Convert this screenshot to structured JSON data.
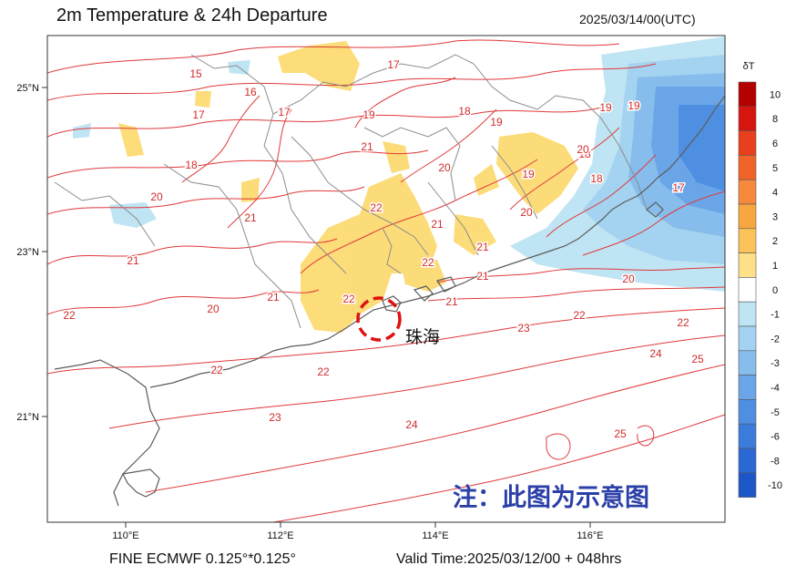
{
  "header": {
    "title": "2m Temperature & 24h Departure",
    "timestamp": "2025/03/14/00(UTC)"
  },
  "footer": {
    "model": "FINE ECMWF 0.125°*0.125°",
    "valid_time": "Valid Time:2025/03/12/00 + 048hrs"
  },
  "axes": {
    "x_ticks": [
      "110°E",
      "112°E",
      "114°E",
      "116°E"
    ],
    "y_ticks": [
      "25°N",
      "23°N",
      "21°N"
    ]
  },
  "annotation": {
    "city_label": "珠海",
    "note": "注：此图为示意图"
  },
  "colorbar": {
    "title": "δT",
    "levels": [
      "10",
      "8",
      "6",
      "5",
      "4",
      "3",
      "2",
      "1",
      "0",
      "-1",
      "-2",
      "-3",
      "-4",
      "-5",
      "-6",
      "-8",
      "-10"
    ],
    "colors": [
      "#b30000",
      "#d7150f",
      "#e8401c",
      "#f0642a",
      "#f6893c",
      "#f8a640",
      "#fbc45a",
      "#fde088",
      "#ffffff",
      "#bfe4f3",
      "#a3d3f0",
      "#86bdec",
      "#6aa6e7",
      "#4f8fe1",
      "#3a7bdc",
      "#2a69d3",
      "#1d56c6"
    ]
  },
  "contour_labels": [
    {
      "text": "15"
    },
    {
      "text": "17"
    },
    {
      "text": "16"
    },
    {
      "text": "17"
    },
    {
      "text": "18"
    },
    {
      "text": "17"
    },
    {
      "text": "19"
    },
    {
      "text": "18"
    },
    {
      "text": "19"
    },
    {
      "text": "19"
    },
    {
      "text": "18"
    },
    {
      "text": "20"
    },
    {
      "text": "21"
    },
    {
      "text": "21"
    },
    {
      "text": "20"
    },
    {
      "text": "21"
    },
    {
      "text": "22"
    },
    {
      "text": "21"
    },
    {
      "text": "20"
    },
    {
      "text": "21"
    },
    {
      "text": "22"
    },
    {
      "text": "22"
    },
    {
      "text": "22"
    },
    {
      "text": "21"
    },
    {
      "text": "20"
    },
    {
      "text": "22"
    },
    {
      "text": "22"
    },
    {
      "text": "23"
    },
    {
      "text": "24"
    },
    {
      "text": "25"
    },
    {
      "text": "22"
    },
    {
      "text": "23"
    },
    {
      "text": "24"
    },
    {
      "text": "25"
    },
    {
      "text": "20"
    },
    {
      "text": "21"
    },
    {
      "text": "19"
    },
    {
      "text": "20"
    },
    {
      "text": "18"
    },
    {
      "text": "19"
    },
    {
      "text": "22"
    },
    {
      "text": "21"
    },
    {
      "text": "17"
    }
  ]
}
